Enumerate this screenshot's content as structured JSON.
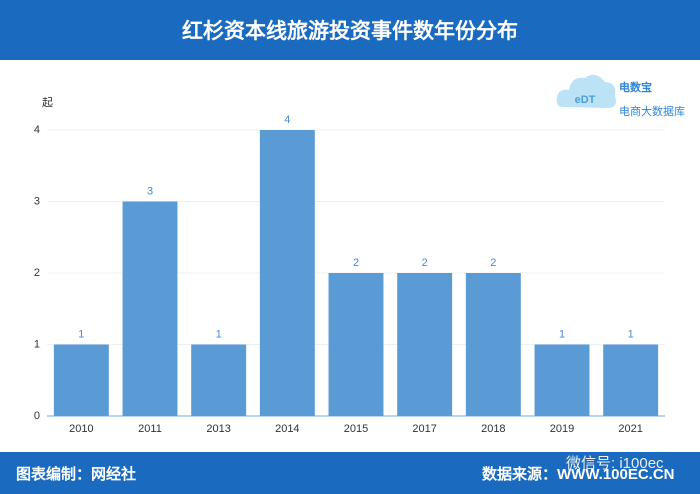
{
  "header": {
    "title": "红杉资本线旅游投资事件数年份分布"
  },
  "logo": {
    "mark": "eDT",
    "name": "电数宝",
    "tagline": "电商大数据库"
  },
  "chart_data": {
    "type": "bar",
    "y_label": "起",
    "categories": [
      "2010",
      "2011",
      "2013",
      "2014",
      "2015",
      "2017",
      "2018",
      "2019",
      "2021"
    ],
    "values": [
      1,
      3,
      1,
      4,
      2,
      2,
      2,
      1,
      1
    ],
    "color": "#5b9bd5",
    "label_color": "#4a8bd0",
    "ylim": [
      0,
      4
    ],
    "yticks": [
      0,
      1,
      2,
      3,
      4
    ],
    "grid": true
  },
  "footer": {
    "credit": "图表编制：网经社",
    "source": "数据来源：WWW.100EC.CN",
    "watermark": "微信号: i100ec"
  }
}
